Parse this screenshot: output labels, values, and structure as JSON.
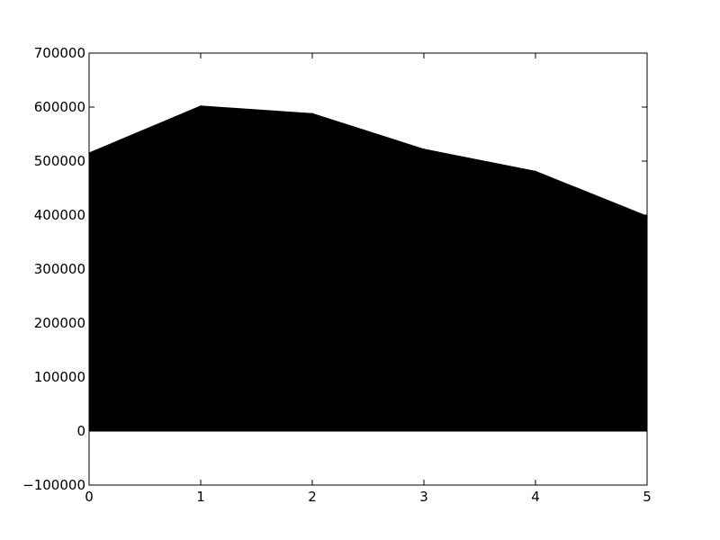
{
  "chart_data": {
    "type": "area",
    "title": "",
    "xlabel": "",
    "ylabel": "",
    "x": [
      0,
      1,
      2,
      3,
      4,
      5
    ],
    "series": [
      {
        "values": [
          515000,
          602000,
          588000,
          522000,
          481000,
          398000
        ],
        "color": "#000000"
      }
    ],
    "xlim": [
      0,
      5
    ],
    "ylim": [
      -100000,
      700000
    ],
    "x_ticks": [
      0,
      1,
      2,
      3,
      4,
      5
    ],
    "y_ticks": [
      -100000,
      0,
      100000,
      200000,
      300000,
      400000,
      500000,
      600000,
      700000
    ],
    "x_tick_labels": [
      "0",
      "1",
      "2",
      "3",
      "4",
      "5"
    ],
    "y_tick_labels": [
      "−100000",
      "0",
      "100000",
      "200000",
      "300000",
      "400000",
      "500000",
      "600000",
      "700000"
    ],
    "grid": false,
    "legend": "none"
  }
}
